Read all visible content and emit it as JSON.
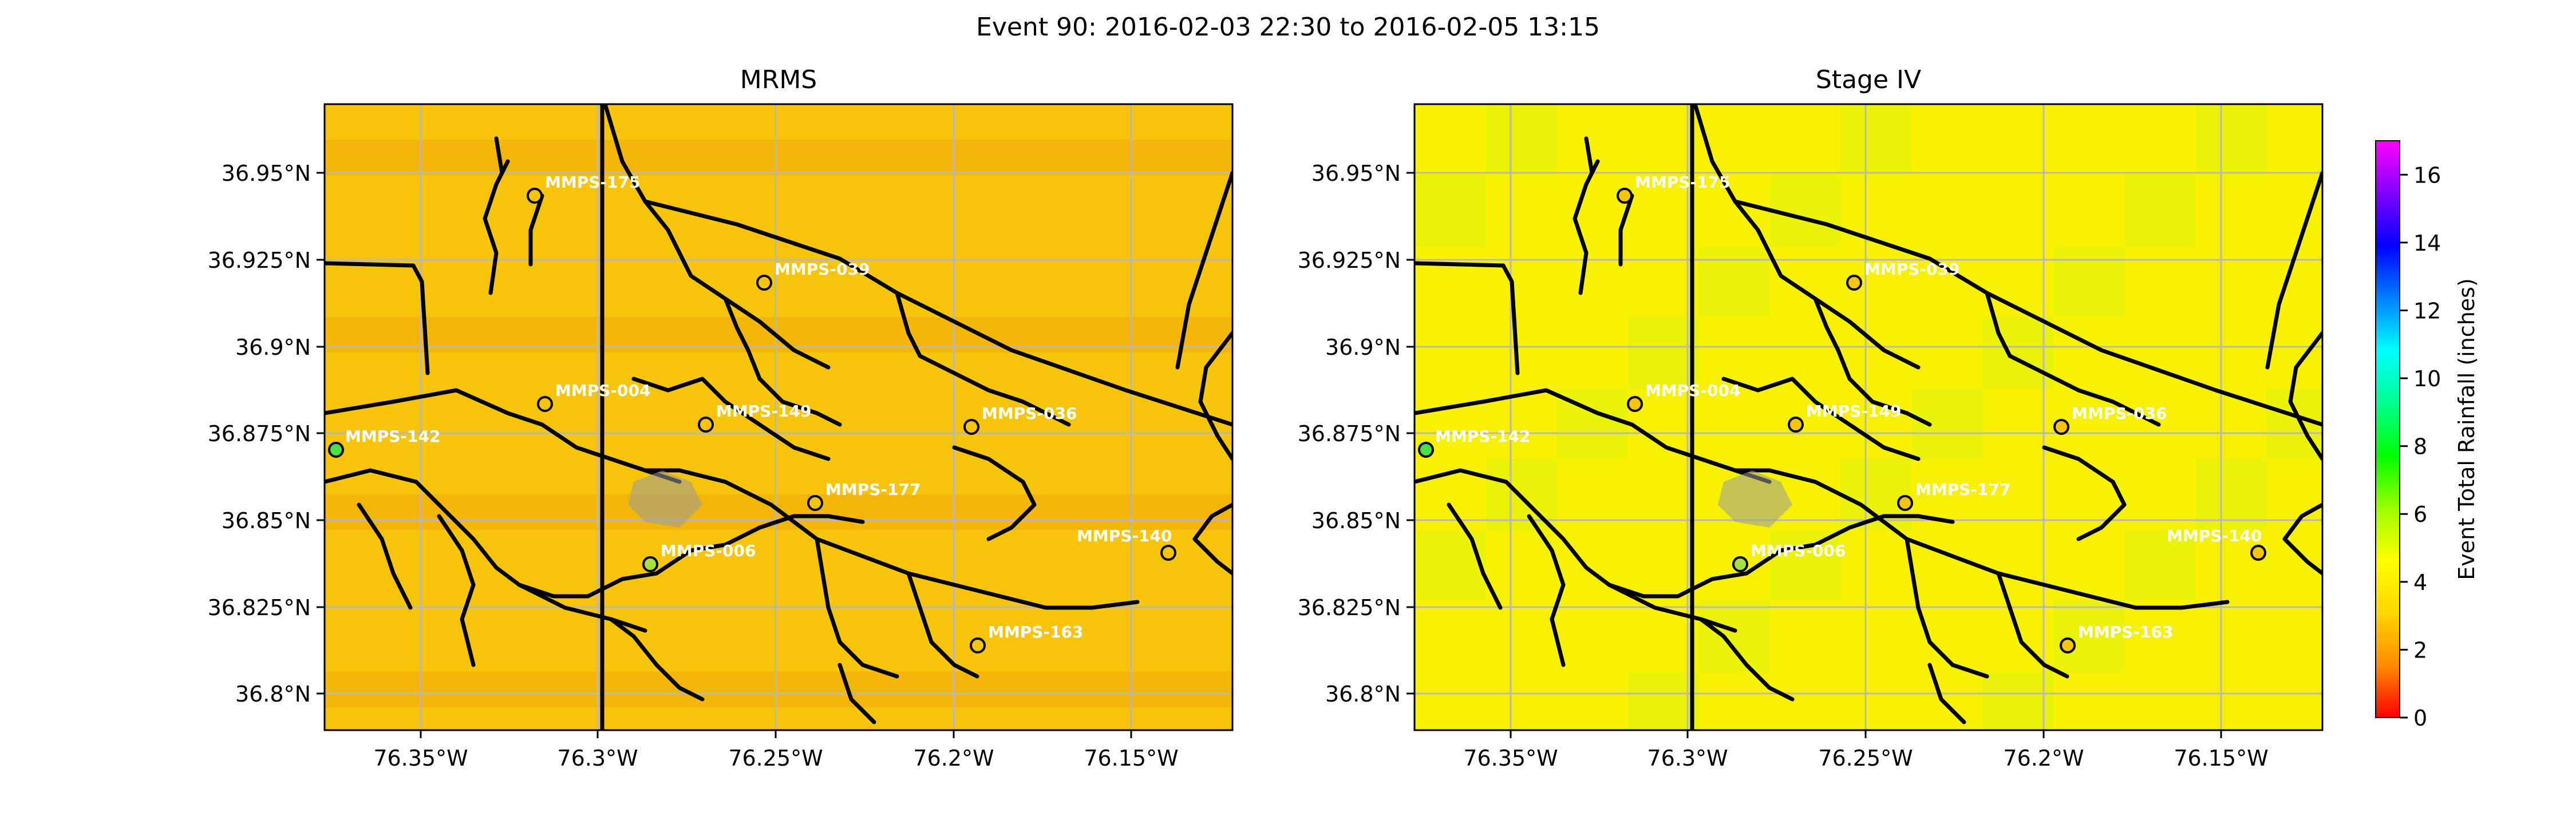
{
  "suptitle": "Event 90: 2016-02-03 22:30 to 2016-02-05 13:15",
  "panels": [
    {
      "title": "MRMS",
      "field_base": "#f6c40a",
      "field_var": "#f3b308"
    },
    {
      "title": "Stage IV",
      "field_base": "#f7f100",
      "field_var": "#e6f20a"
    }
  ],
  "x_ticks": [
    "76.35°W",
    "76.3°W",
    "76.25°W",
    "76.2°W",
    "76.15°W"
  ],
  "y_ticks": [
    "36.95°N",
    "36.925°N",
    "36.9°N",
    "36.875°N",
    "36.85°N",
    "36.825°N",
    "36.8°N"
  ],
  "colorbar": {
    "label": "Event Total Rainfall (inches)",
    "ticks": [
      "0",
      "2",
      "4",
      "6",
      "8",
      "10",
      "12",
      "14",
      "16"
    ],
    "range": [
      0,
      17
    ],
    "colors": [
      "#ff0000",
      "#ff8c00",
      "#ffd700",
      "#ffff00",
      "#9aff00",
      "#00ff00",
      "#00ff90",
      "#00ffff",
      "#0080ff",
      "#0000ff",
      "#8000ff",
      "#ff00ff"
    ]
  },
  "gauges": [
    {
      "label": "MMPS-175",
      "fill": "#f6c40a"
    },
    {
      "label": "MMPS-039",
      "fill": "#f6c40a"
    },
    {
      "label": "MMPS-004",
      "fill": "#f6c40a"
    },
    {
      "label": "MMPS-149",
      "fill": "#f6c40a"
    },
    {
      "label": "MMPS-036",
      "fill": "#f6c40a"
    },
    {
      "label": "MMPS-142",
      "fill": "#46e04a"
    },
    {
      "label": "MMPS-177",
      "fill": "#f6c40a"
    },
    {
      "label": "MMPS-140",
      "fill": "#f6c40a"
    },
    {
      "label": "MMPS-006",
      "fill": "#a8e040"
    },
    {
      "label": "MMPS-163",
      "fill": "#f6c40a"
    }
  ]
}
